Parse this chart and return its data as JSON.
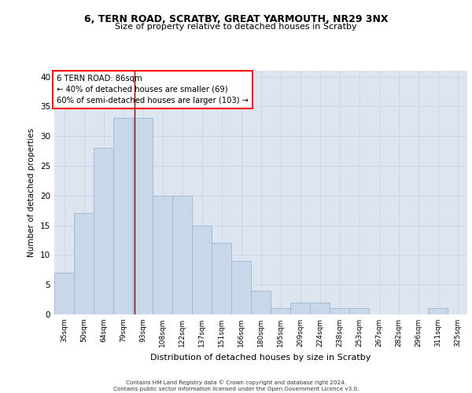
{
  "title_line1": "6, TERN ROAD, SCRATBY, GREAT YARMOUTH, NR29 3NX",
  "title_line2": "Size of property relative to detached houses in Scratby",
  "xlabel": "Distribution of detached houses by size in Scratby",
  "ylabel": "Number of detached properties",
  "categories": [
    "35sqm",
    "50sqm",
    "64sqm",
    "79sqm",
    "93sqm",
    "108sqm",
    "122sqm",
    "137sqm",
    "151sqm",
    "166sqm",
    "180sqm",
    "195sqm",
    "209sqm",
    "224sqm",
    "238sqm",
    "253sqm",
    "267sqm",
    "282sqm",
    "296sqm",
    "311sqm",
    "325sqm"
  ],
  "values": [
    7,
    17,
    28,
    33,
    33,
    20,
    20,
    15,
    12,
    9,
    4,
    1,
    2,
    2,
    1,
    1,
    0,
    0,
    0,
    1,
    0
  ],
  "bar_color": "#c8d8ea",
  "bar_edge_color": "#9ab8d0",
  "grid_color": "#ccd8e8",
  "background_color": "#dde6f0",
  "red_line_x": 3.57,
  "annotation_title": "6 TERN ROAD: 86sqm",
  "annotation_line1": "← 40% of detached houses are smaller (69)",
  "annotation_line2": "60% of semi-detached houses are larger (103) →",
  "annotation_box_color": "white",
  "annotation_box_edge": "red",
  "ylim": [
    0,
    41
  ],
  "yticks": [
    0,
    5,
    10,
    15,
    20,
    25,
    30,
    35,
    40
  ],
  "footnote1": "Contains HM Land Registry data © Crown copyright and database right 2024.",
  "footnote2": "Contains public sector information licensed under the Open Government Licence v3.0."
}
